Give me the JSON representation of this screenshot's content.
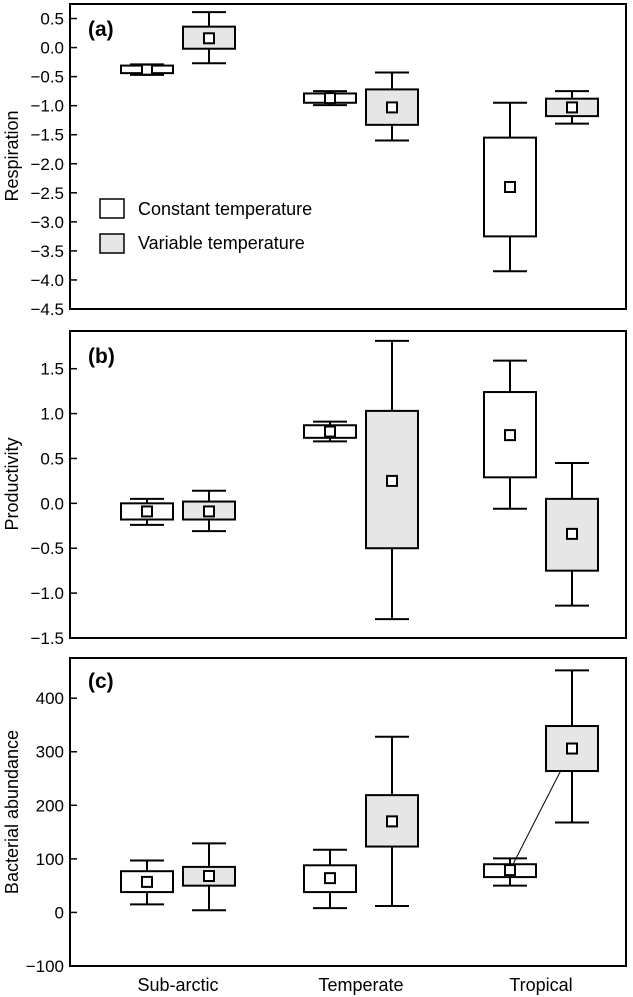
{
  "categories": [
    "Sub-arctic",
    "Temperate",
    "Tropical"
  ],
  "legend": {
    "constant": "Constant temperature",
    "variable": "Variable temperature"
  },
  "colors": {
    "constant_fill": "#ffffff",
    "variable_fill": "#e6e6e6",
    "stroke": "#000000"
  },
  "chart_data": [
    {
      "type": "box",
      "panel_label": "(a)",
      "ylabel": "Respiration",
      "ylim": [
        -4.5,
        0.75
      ],
      "yticks": [
        0.5,
        0.0,
        -0.5,
        -1.0,
        -1.5,
        -2.0,
        -2.5,
        -3.0,
        -3.5,
        -4.0,
        -4.5
      ],
      "ytick_labels": [
        "0.5",
        "0.0",
        "−0.5",
        "−1.0",
        "−1.5",
        "−2.0",
        "−2.5",
        "−3.0",
        "−3.5",
        "−4.0",
        "−4.5"
      ],
      "legend_position": "lower-left",
      "series": [
        {
          "name": "Constant temperature",
          "boxes": [
            {
              "category": "Sub-arctic",
              "whisker_low": -0.47,
              "box_low": -0.44,
              "mean": -0.38,
              "box_high": -0.31,
              "whisker_high": -0.29
            },
            {
              "category": "Temperate",
              "whisker_low": -0.99,
              "box_low": -0.95,
              "mean": -0.87,
              "box_high": -0.79,
              "whisker_high": -0.75
            },
            {
              "category": "Tropical",
              "whisker_low": -3.85,
              "box_low": -3.25,
              "mean": -2.4,
              "box_high": -1.55,
              "whisker_high": -0.95
            }
          ]
        },
        {
          "name": "Variable temperature",
          "boxes": [
            {
              "category": "Sub-arctic",
              "whisker_low": -0.27,
              "box_low": -0.02,
              "mean": 0.16,
              "box_high": 0.36,
              "whisker_high": 0.61
            },
            {
              "category": "Temperate",
              "whisker_low": -1.6,
              "box_low": -1.33,
              "mean": -1.03,
              "box_high": -0.72,
              "whisker_high": -0.43
            },
            {
              "category": "Tropical",
              "whisker_low": -1.31,
              "box_low": -1.18,
              "mean": -1.03,
              "box_high": -0.88,
              "whisker_high": -0.75
            }
          ]
        }
      ]
    },
    {
      "type": "box",
      "panel_label": "(b)",
      "ylabel": "Productivity",
      "ylim": [
        -1.5,
        1.92
      ],
      "yticks": [
        1.5,
        1.0,
        0.5,
        0.0,
        -0.5,
        -1.0,
        -1.5
      ],
      "ytick_labels": [
        "1.5",
        "1.0",
        "0.5",
        "0.0",
        "−0.5",
        "−1.0",
        "−1.5"
      ],
      "series": [
        {
          "name": "Constant temperature",
          "boxes": [
            {
              "category": "Sub-arctic",
              "whisker_low": -0.24,
              "box_low": -0.18,
              "mean": -0.09,
              "box_high": 0.0,
              "whisker_high": 0.05
            },
            {
              "category": "Temperate",
              "whisker_low": 0.69,
              "box_low": 0.73,
              "mean": 0.8,
              "box_high": 0.87,
              "whisker_high": 0.91
            },
            {
              "category": "Tropical",
              "whisker_low": -0.06,
              "box_low": 0.29,
              "mean": 0.76,
              "box_high": 1.24,
              "whisker_high": 1.59
            }
          ]
        },
        {
          "name": "Variable temperature",
          "boxes": [
            {
              "category": "Sub-arctic",
              "whisker_low": -0.31,
              "box_low": -0.18,
              "mean": -0.09,
              "box_high": 0.02,
              "whisker_high": 0.14
            },
            {
              "category": "Temperate",
              "whisker_low": -1.29,
              "box_low": -0.5,
              "mean": 0.25,
              "box_high": 1.03,
              "whisker_high": 1.81
            },
            {
              "category": "Tropical",
              "whisker_low": -1.14,
              "box_low": -0.75,
              "mean": -0.34,
              "box_high": 0.05,
              "whisker_high": 0.45
            }
          ]
        }
      ]
    },
    {
      "type": "box",
      "panel_label": "(c)",
      "ylabel": "Bacterial abundance",
      "ylim": [
        -100,
        475
      ],
      "yticks": [
        400,
        300,
        200,
        100,
        0,
        -100
      ],
      "ytick_labels": [
        "400",
        "300",
        "200",
        "100",
        "0",
        "−100"
      ],
      "series": [
        {
          "name": "Constant temperature",
          "boxes": [
            {
              "category": "Sub-arctic",
              "whisker_low": 15,
              "box_low": 38,
              "mean": 57,
              "box_high": 77,
              "whisker_high": 97
            },
            {
              "category": "Temperate",
              "whisker_low": 8,
              "box_low": 38,
              "mean": 64,
              "box_high": 88,
              "whisker_high": 117
            },
            {
              "category": "Tropical",
              "whisker_low": 50,
              "box_low": 66,
              "mean": 79,
              "box_high": 90,
              "whisker_high": 101
            }
          ]
        },
        {
          "name": "Variable temperature",
          "boxes": [
            {
              "category": "Sub-arctic",
              "whisker_low": 4,
              "box_low": 50,
              "mean": 68,
              "box_high": 85,
              "whisker_high": 129
            },
            {
              "category": "Temperate",
              "whisker_low": 12,
              "box_low": 123,
              "mean": 170,
              "box_high": 219,
              "whisker_high": 328
            },
            {
              "category": "Tropical",
              "whisker_low": 168,
              "box_low": 264,
              "mean": 306,
              "box_high": 348,
              "whisker_high": 452
            }
          ]
        }
      ],
      "connector": {
        "from": {
          "series": "Constant temperature",
          "category": "Tropical"
        },
        "to": {
          "series": "Variable temperature",
          "category": "Tropical"
        }
      }
    }
  ]
}
